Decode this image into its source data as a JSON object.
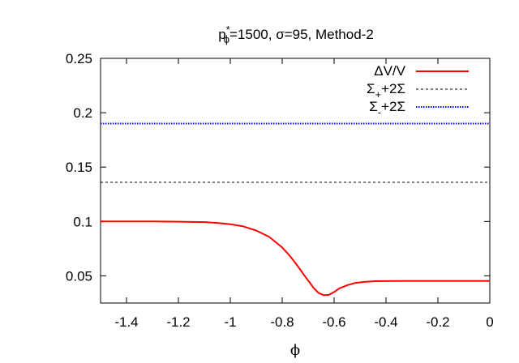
{
  "chart_data": {
    "type": "line",
    "title": "p*ϕ=1500, σ=95, Method-2",
    "title_parts": {
      "p": "p",
      "sup": "*",
      "sub": "ϕ",
      "rest": "=1500, σ=95, Method-2"
    },
    "xlabel": "ϕ",
    "ylabel": "",
    "xlim": [
      -1.5,
      0
    ],
    "ylim": [
      0.025,
      0.25
    ],
    "xticks": [
      -1.4,
      -1.2,
      -1,
      -0.8,
      -0.6,
      -0.4,
      -0.2,
      0
    ],
    "xtick_labels": [
      "-1.4",
      "-1.2",
      "-1",
      "-0.8",
      "-0.6",
      "-0.4",
      "-0.2",
      "0"
    ],
    "yticks": [
      0.05,
      0.1,
      0.15,
      0.2,
      0.25
    ],
    "ytick_labels": [
      "0.05",
      "0.1",
      "0.15",
      "0.2",
      "0.25"
    ],
    "grid": false,
    "legend_position": "top-right",
    "series": [
      {
        "name": "ΔV/V",
        "color": "#ff0000",
        "style": "solid",
        "x": [
          -1.5,
          -1.4,
          -1.3,
          -1.2,
          -1.1,
          -1.05,
          -1.0,
          -0.95,
          -0.9,
          -0.85,
          -0.8,
          -0.77,
          -0.74,
          -0.71,
          -0.68,
          -0.66,
          -0.64,
          -0.62,
          -0.6,
          -0.58,
          -0.55,
          -0.52,
          -0.48,
          -0.44,
          -0.4,
          -0.35,
          -0.3,
          -0.2,
          -0.1,
          0
        ],
        "y": [
          0.1,
          0.1,
          0.1,
          0.0998,
          0.0994,
          0.0987,
          0.0975,
          0.0955,
          0.0917,
          0.0858,
          0.0761,
          0.0682,
          0.0589,
          0.0489,
          0.0392,
          0.0343,
          0.0322,
          0.0325,
          0.0351,
          0.0385,
          0.0413,
          0.0434,
          0.0446,
          0.0451,
          0.0452,
          0.0453,
          0.0453,
          0.0453,
          0.0453,
          0.0453
        ]
      },
      {
        "name_parts": {
          "base": "Σ",
          "sub": "+",
          "rest": "+2Σ"
        },
        "color": "#000000",
        "style": "dashed",
        "x": [
          -1.5,
          0
        ],
        "y": [
          0.136,
          0.136
        ]
      },
      {
        "name_parts": {
          "base": "Σ",
          "sub": "-",
          "rest": "+2Σ"
        },
        "color": "#0000ff",
        "style": "dotted",
        "x": [
          -1.5,
          0
        ],
        "y": [
          0.19,
          0.19
        ]
      }
    ]
  }
}
